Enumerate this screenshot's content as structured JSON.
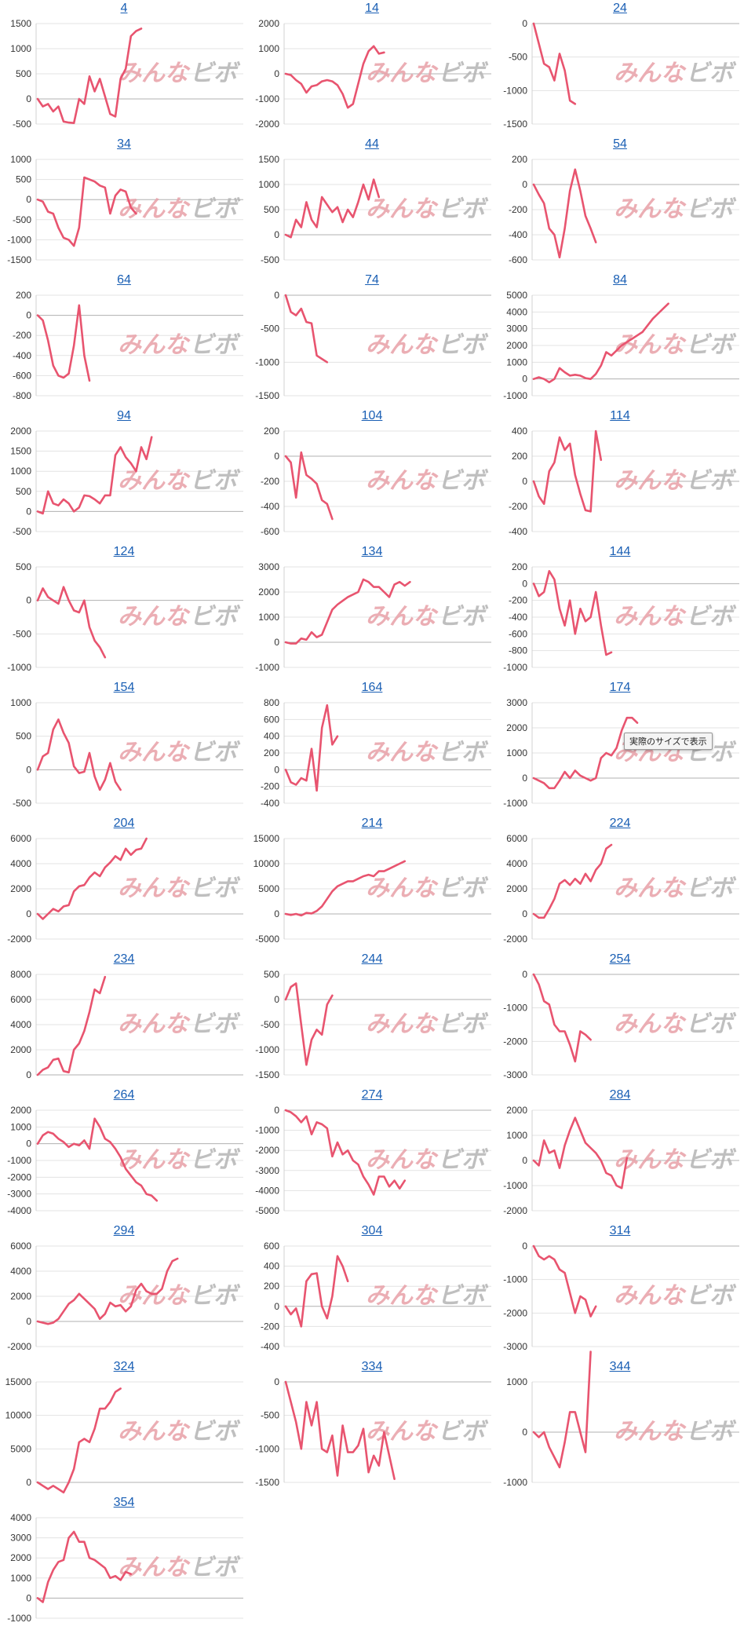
{
  "line_color": "#e8546f",
  "title_color": "#1a5fb4",
  "watermark": {
    "text_left": "みんな",
    "text_right": "ビボ",
    "color_left": "#e8a0a8",
    "color_right": "#b5b5b5"
  },
  "tooltip_text": "実際のサイズで表示",
  "chart_data": [
    {
      "type": "line",
      "title": "4",
      "yticks": [
        -500,
        0,
        500,
        1000,
        1500
      ],
      "values": [
        0,
        -150,
        -100,
        -250,
        -150,
        -450,
        -470,
        -480,
        0,
        -100,
        450,
        150,
        400,
        50,
        -300,
        -350,
        400,
        600,
        1250,
        1350,
        1400
      ]
    },
    {
      "type": "line",
      "title": "14",
      "yticks": [
        -2000,
        -1000,
        0,
        1000,
        2000
      ],
      "values": [
        0,
        -50,
        -250,
        -400,
        -750,
        -500,
        -450,
        -300,
        -250,
        -300,
        -450,
        -800,
        -1350,
        -1200,
        -400,
        400,
        900,
        1100,
        800,
        850
      ]
    },
    {
      "type": "line",
      "title": "24",
      "yticks": [
        -1500,
        -1000,
        -500,
        0
      ],
      "values": [
        0,
        -300,
        -600,
        -650,
        -850,
        -450,
        -700,
        -1150,
        -1200
      ]
    },
    {
      "type": "line",
      "title": "34",
      "yticks": [
        -1500,
        -1000,
        -500,
        0,
        500,
        1000
      ],
      "values": [
        0,
        -50,
        -300,
        -350,
        -700,
        -950,
        -1000,
        -1150,
        -700,
        550,
        500,
        450,
        350,
        300,
        -350,
        100,
        250,
        200,
        -200,
        -350
      ]
    },
    {
      "type": "line",
      "title": "44",
      "yticks": [
        -500,
        0,
        500,
        1000,
        1500
      ],
      "values": [
        0,
        -50,
        300,
        150,
        650,
        300,
        150,
        750,
        600,
        450,
        550,
        250,
        500,
        350,
        650,
        1000,
        700,
        1100,
        750
      ]
    },
    {
      "type": "line",
      "title": "54",
      "yticks": [
        -600,
        -400,
        -200,
        0,
        200
      ],
      "values": [
        0,
        -80,
        -150,
        -350,
        -400,
        -580,
        -350,
        -50,
        120,
        -50,
        -250,
        -350,
        -460
      ]
    },
    {
      "type": "line",
      "title": "64",
      "yticks": [
        -800,
        -600,
        -400,
        -200,
        0,
        200
      ],
      "values": [
        0,
        -50,
        -250,
        -500,
        -600,
        -620,
        -580,
        -300,
        100,
        -400,
        -650
      ]
    },
    {
      "type": "line",
      "title": "74",
      "yticks": [
        -1500,
        -1000,
        -500,
        0
      ],
      "values": [
        0,
        -250,
        -300,
        -200,
        -400,
        -420,
        -900,
        -950,
        -1000
      ]
    },
    {
      "type": "line",
      "title": "84",
      "yticks": [
        -1000,
        0,
        1000,
        2000,
        3000,
        4000,
        5000
      ],
      "values": [
        0,
        100,
        0,
        -200,
        0,
        650,
        400,
        200,
        250,
        200,
        50,
        0,
        300,
        800,
        1600,
        1400,
        1700,
        2000,
        2200,
        2400,
        2600,
        2800,
        3200,
        3600,
        3900,
        4200,
        4500
      ]
    },
    {
      "type": "line",
      "title": "94",
      "yticks": [
        -500,
        0,
        500,
        1000,
        1500,
        2000
      ],
      "values": [
        0,
        -50,
        500,
        200,
        150,
        300,
        200,
        0,
        100,
        400,
        380,
        300,
        200,
        400,
        400,
        1400,
        1600,
        1350,
        1200,
        1000,
        1600,
        1300,
        1850
      ]
    },
    {
      "type": "line",
      "title": "104",
      "yticks": [
        -600,
        -400,
        -200,
        0,
        200
      ],
      "values": [
        0,
        -50,
        -330,
        30,
        -150,
        -180,
        -220,
        -350,
        -380,
        -500
      ]
    },
    {
      "type": "line",
      "title": "114",
      "yticks": [
        -400,
        -200,
        0,
        200,
        400
      ],
      "values": [
        0,
        -120,
        -180,
        80,
        150,
        350,
        250,
        300,
        50,
        -100,
        -230,
        -240,
        400,
        170
      ]
    },
    {
      "type": "line",
      "title": "124",
      "yticks": [
        -1000,
        -500,
        0,
        500
      ],
      "values": [
        0,
        180,
        50,
        0,
        -50,
        200,
        0,
        -150,
        -180,
        0,
        -400,
        -600,
        -700,
        -850
      ]
    },
    {
      "type": "line",
      "title": "134",
      "yticks": [
        -1000,
        0,
        1000,
        2000,
        3000
      ],
      "values": [
        0,
        -50,
        -50,
        150,
        100,
        400,
        200,
        300,
        800,
        1300,
        1500,
        1650,
        1800,
        1900,
        2000,
        2500,
        2400,
        2200,
        2200,
        2000,
        1800,
        2300,
        2400,
        2250,
        2400
      ]
    },
    {
      "type": "line",
      "title": "144",
      "yticks": [
        -1000,
        -800,
        -600,
        -400,
        -200,
        0,
        200
      ],
      "values": [
        0,
        -150,
        -100,
        150,
        50,
        -300,
        -500,
        -200,
        -600,
        -300,
        -450,
        -400,
        -100,
        -500,
        -850,
        -820
      ]
    },
    {
      "type": "line",
      "title": "154",
      "yticks": [
        -500,
        0,
        500,
        1000
      ],
      "values": [
        0,
        200,
        250,
        600,
        750,
        550,
        400,
        50,
        -50,
        -30,
        250,
        -100,
        -300,
        -150,
        100,
        -180,
        -300
      ]
    },
    {
      "type": "line",
      "title": "164",
      "yticks": [
        -400,
        -200,
        0,
        200,
        400,
        600,
        800
      ],
      "values": [
        0,
        -150,
        -180,
        -100,
        -130,
        250,
        -250,
        500,
        770,
        300,
        400
      ]
    },
    {
      "type": "line",
      "title": "174",
      "yticks": [
        -1000,
        0,
        1000,
        2000,
        3000
      ],
      "values": [
        0,
        -100,
        -200,
        -400,
        -400,
        -100,
        250,
        0,
        300,
        100,
        0,
        -100,
        0,
        800,
        1000,
        900,
        1200,
        1900,
        2400,
        2400,
        2200
      ]
    },
    {
      "type": "line",
      "title": "204",
      "yticks": [
        -2000,
        0,
        2000,
        4000,
        6000
      ],
      "values": [
        0,
        -400,
        0,
        400,
        200,
        600,
        700,
        1800,
        2200,
        2300,
        2900,
        3300,
        3000,
        3700,
        4100,
        4600,
        4300,
        5200,
        4700,
        5100,
        5200,
        6000
      ]
    },
    {
      "type": "line",
      "title": "214",
      "yticks": [
        -5000,
        0,
        5000,
        10000,
        15000
      ],
      "values": [
        0,
        -200,
        0,
        -300,
        200,
        100,
        600,
        1500,
        3000,
        4500,
        5500,
        6000,
        6500,
        6500,
        7000,
        7500,
        7800,
        7500,
        8500,
        8500,
        9000,
        9500,
        10000,
        10500
      ]
    },
    {
      "type": "line",
      "title": "224",
      "yticks": [
        -2000,
        0,
        2000,
        4000,
        6000
      ],
      "values": [
        0,
        -300,
        -300,
        400,
        1200,
        2400,
        2700,
        2300,
        2800,
        2400,
        3200,
        2600,
        3500,
        4000,
        5200,
        5500
      ]
    },
    {
      "type": "line",
      "title": "234",
      "yticks": [
        0,
        2000,
        4000,
        6000,
        8000
      ],
      "values": [
        0,
        400,
        600,
        1200,
        1300,
        300,
        200,
        2000,
        2500,
        3500,
        5000,
        6800,
        6500,
        7800
      ]
    },
    {
      "type": "line",
      "title": "244",
      "yticks": [
        -1500,
        -1000,
        -500,
        0,
        500
      ],
      "values": [
        0,
        250,
        320,
        -500,
        -1300,
        -800,
        -600,
        -700,
        -100,
        80
      ]
    },
    {
      "type": "line",
      "title": "254",
      "yticks": [
        -3000,
        -2000,
        -1000,
        0
      ],
      "values": [
        0,
        -300,
        -800,
        -900,
        -1500,
        -1700,
        -1700,
        -2100,
        -2600,
        -1700,
        -1800,
        -1950
      ]
    },
    {
      "type": "line",
      "title": "264",
      "yticks": [
        -4000,
        -3000,
        -2000,
        -1000,
        0,
        1000,
        2000
      ],
      "values": [
        0,
        500,
        700,
        600,
        300,
        100,
        -200,
        0,
        -100,
        200,
        -300,
        1500,
        1000,
        300,
        100,
        -300,
        -800,
        -1500,
        -1900,
        -2300,
        -2500,
        -3000,
        -3100,
        -3400
      ]
    },
    {
      "type": "line",
      "title": "274",
      "yticks": [
        -5000,
        -4000,
        -3000,
        -2000,
        -1000,
        0
      ],
      "values": [
        0,
        -100,
        -300,
        -600,
        -300,
        -1200,
        -600,
        -700,
        -900,
        -2300,
        -1600,
        -2200,
        -2000,
        -2500,
        -2700,
        -3300,
        -3700,
        -4200,
        -3300,
        -3300,
        -3800,
        -3500,
        -3900,
        -3500
      ]
    },
    {
      "type": "line",
      "title": "284",
      "yticks": [
        -2000,
        -1000,
        0,
        1000,
        2000
      ],
      "values": [
        0,
        -200,
        800,
        300,
        400,
        -300,
        600,
        1200,
        1700,
        1200,
        700,
        500,
        300,
        0,
        -500,
        -600,
        -1000,
        -1100,
        100
      ]
    },
    {
      "type": "line",
      "title": "294",
      "yticks": [
        -2000,
        0,
        2000,
        4000,
        6000
      ],
      "values": [
        0,
        -100,
        -200,
        -100,
        200,
        800,
        1400,
        1700,
        2200,
        1800,
        1400,
        1000,
        200,
        600,
        1500,
        1200,
        1300,
        800,
        1200,
        2500,
        3000,
        2400,
        2200,
        2200,
        2600,
        4000,
        4800,
        5000
      ]
    },
    {
      "type": "line",
      "title": "304",
      "yticks": [
        -400,
        -200,
        0,
        200,
        400,
        600
      ],
      "values": [
        0,
        -80,
        -20,
        -200,
        250,
        320,
        330,
        0,
        -120,
        100,
        500,
        400,
        250
      ]
    },
    {
      "type": "line",
      "title": "314",
      "yticks": [
        -3000,
        -2000,
        -1000,
        0
      ],
      "values": [
        0,
        -300,
        -400,
        -300,
        -400,
        -700,
        -800,
        -1400,
        -2000,
        -1500,
        -1600,
        -2100,
        -1800
      ]
    },
    {
      "type": "line",
      "title": "324",
      "yticks": [
        0,
        5000,
        10000,
        15000
      ],
      "values": [
        0,
        -500,
        -1000,
        -500,
        -1000,
        -1500,
        0,
        2000,
        6000,
        6500,
        6000,
        8000,
        11000,
        11000,
        12000,
        13500,
        14000
      ]
    },
    {
      "type": "line",
      "title": "334",
      "yticks": [
        -1500,
        -1000,
        -500,
        0
      ],
      "values": [
        0,
        -300,
        -600,
        -1000,
        -300,
        -650,
        -300,
        -1000,
        -1050,
        -800,
        -1400,
        -650,
        -1050,
        -1050,
        -950,
        -700,
        -1350,
        -1100,
        -1250,
        -750,
        -1100,
        -1450
      ]
    },
    {
      "type": "line",
      "title": "344",
      "yticks": [
        -1000,
        0,
        1000
      ],
      "values": [
        0,
        -100,
        0,
        -300,
        -500,
        -700,
        -200,
        400,
        400,
        0,
        -400,
        1600
      ]
    },
    {
      "type": "line",
      "title": "354",
      "yticks": [
        -1000,
        0,
        1000,
        2000,
        3000,
        4000
      ],
      "values": [
        0,
        -200,
        800,
        1400,
        1800,
        1900,
        3000,
        3300,
        2800,
        2800,
        2000,
        1900,
        1700,
        1500,
        1000,
        1100,
        900,
        1300,
        1200
      ]
    }
  ]
}
